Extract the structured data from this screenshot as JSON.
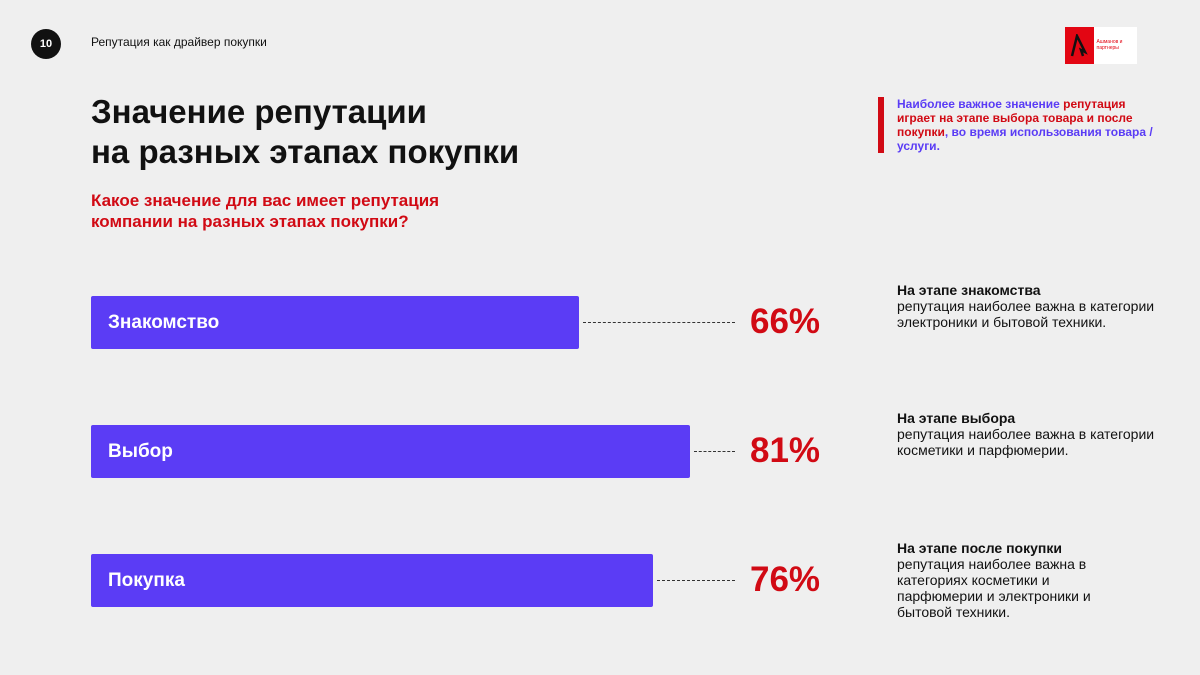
{
  "header": {
    "page_number": "10",
    "section": "Репутация как драйвер покупки",
    "logo_text": "Ашманов и партнеры"
  },
  "title_line1": "Значение репутации",
  "title_line2": "на разных этапах покупки",
  "subtitle": "Какое значение для вас имеет репутация компании на разных этапах покупки?",
  "callout": {
    "part1": "Наиболее важное значение ",
    "part2": "репутация играет на этапе выбора товара и после покупки",
    "part3": ", во время использования товара / услуги."
  },
  "colors": {
    "bar": "#5b3cf5",
    "accent": "#d10a14"
  },
  "chart_data": {
    "type": "bar",
    "orientation": "horizontal",
    "categories": [
      "Знакомство",
      "Выбор",
      "Покупка"
    ],
    "values": [
      66,
      81,
      76
    ],
    "value_labels": [
      "66%",
      "81%",
      "76%"
    ],
    "xlim": [
      0,
      100
    ]
  },
  "notes": [
    {
      "heading": "На этапе знакомства",
      "text": "репутация наиболее важна в категории электроники и бытовой техники."
    },
    {
      "heading": "На этапе выбора",
      "text": "репутация наиболее важна в категории косметики и парфюмерии."
    },
    {
      "heading": "На этапе после покупки",
      "text": "репутация наиболее важна в категориях косметики и парфюмерии и электроники и бытовой техники."
    }
  ]
}
